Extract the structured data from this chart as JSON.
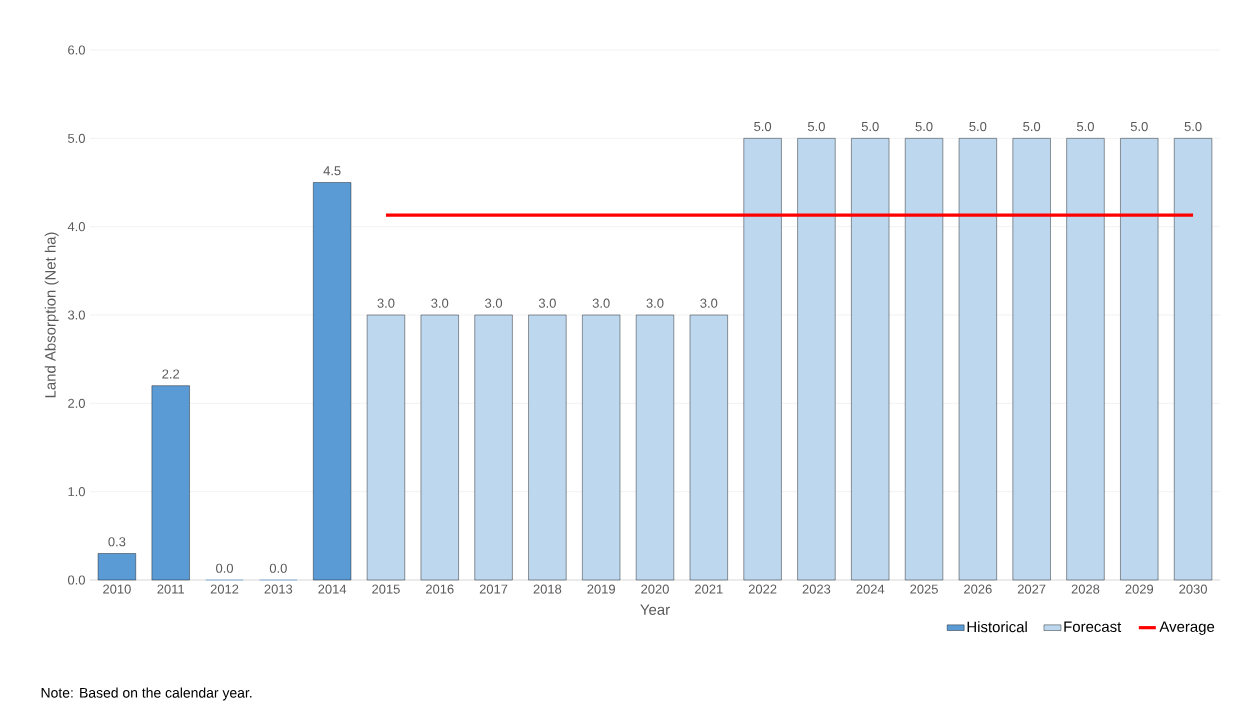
{
  "chart_data": {
    "type": "bar",
    "ylabel": "Land Absorption (Net ha)",
    "xlabel": "Year",
    "categories": [
      "2010",
      "2011",
      "2012",
      "2013",
      "2014",
      "2015",
      "2016",
      "2017",
      "2018",
      "2019",
      "2020",
      "2021",
      "2022",
      "2023",
      "2024",
      "2025",
      "2026",
      "2027",
      "2028",
      "2029",
      "2030"
    ],
    "series": [
      {
        "name": "Historical",
        "color": "#5b9bd5",
        "values": [
          0.3,
          2.2,
          0.0,
          0.0,
          4.5,
          null,
          null,
          null,
          null,
          null,
          null,
          null,
          null,
          null,
          null,
          null,
          null,
          null,
          null,
          null,
          null
        ],
        "value_labels": [
          "0.3",
          "2.2",
          "0.0",
          "0.0",
          "4.5",
          null,
          null,
          null,
          null,
          null,
          null,
          null,
          null,
          null,
          null,
          null,
          null,
          null,
          null,
          null,
          null
        ]
      },
      {
        "name": "Forecast",
        "color": "#bdd7ee",
        "values": [
          null,
          null,
          null,
          null,
          null,
          3.0,
          3.0,
          3.0,
          3.0,
          3.0,
          3.0,
          3.0,
          5.0,
          5.0,
          5.0,
          5.0,
          5.0,
          5.0,
          5.0,
          5.0,
          5.0
        ],
        "value_labels": [
          null,
          null,
          null,
          null,
          null,
          "3.0",
          "3.0",
          "3.0",
          "3.0",
          "3.0",
          "3.0",
          "3.0",
          "5.0",
          "5.0",
          "5.0",
          "5.0",
          "5.0",
          "5.0",
          "5.0",
          "5.0",
          "5.0"
        ]
      },
      {
        "name": "Average",
        "type": "line",
        "color": "#ff0000",
        "values": [
          null,
          null,
          null,
          null,
          null,
          4.13,
          4.13,
          4.13,
          4.13,
          4.13,
          4.13,
          4.13,
          4.13,
          4.13,
          4.13,
          4.13,
          4.13,
          4.13,
          4.13,
          4.13,
          4.13
        ]
      }
    ],
    "ylim": [
      0,
      6
    ],
    "yticks": [
      {
        "value": 0,
        "label": "0.0"
      },
      {
        "value": 1,
        "label": "1.0"
      },
      {
        "value": 2,
        "label": "2.0"
      },
      {
        "value": 3,
        "label": "3.0"
      },
      {
        "value": 4,
        "label": "4.0"
      },
      {
        "value": 5,
        "label": "5.0"
      },
      {
        "value": 6,
        "label": "6.0"
      }
    ],
    "grid": "y",
    "legend": "bottom right",
    "annotations": [
      "Note: Based on the calendar year."
    ]
  }
}
